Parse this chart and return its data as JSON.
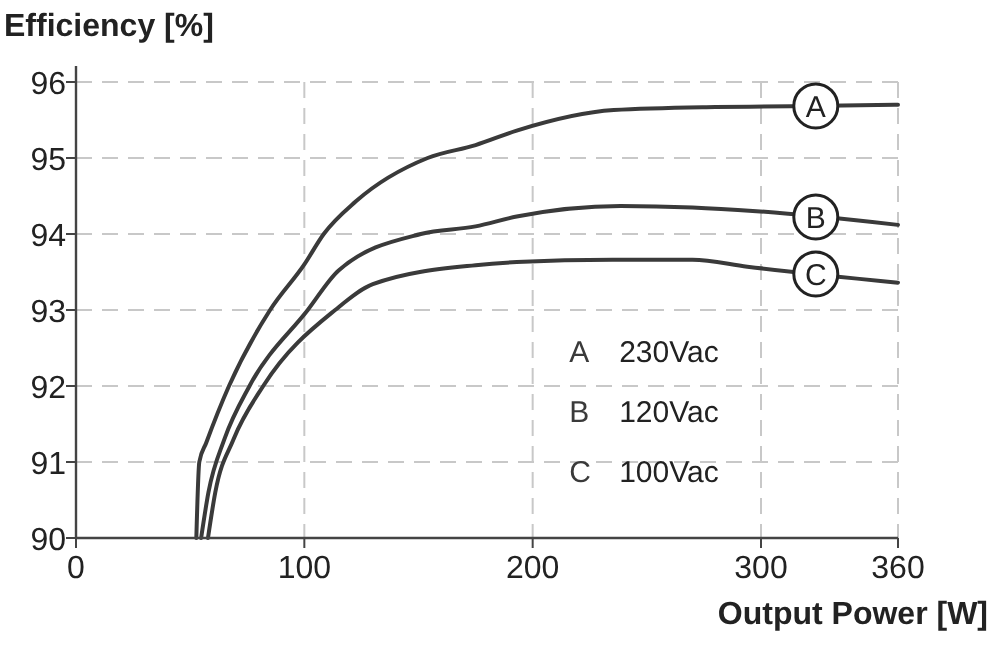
{
  "chart_data": {
    "type": "line",
    "ylabel": "Efficiency [%]",
    "xlabel": "Output Power [W]",
    "xlim": [
      0,
      360
    ],
    "xticks": [
      0,
      100,
      200,
      300,
      360
    ],
    "ylim": [
      90,
      96
    ],
    "yticks": [
      90,
      91,
      92,
      93,
      94,
      95,
      96
    ],
    "grid": true,
    "legend": "top right",
    "line_style": "solid",
    "series": [
      {
        "name": "A",
        "color": "#3a3a3a",
        "x": [
          52.7,
          54,
          57,
          67,
          85,
          100,
          108.5,
          122.6,
          154,
          175,
          193,
          235.5,
          280,
          313,
          360
        ],
        "values": [
          90,
          91,
          91.25,
          92,
          93,
          93.6,
          94,
          94.43,
          95,
          95.17,
          95.36,
          95.63,
          95.67,
          95.68,
          95.7
        ]
      },
      {
        "name": "B",
        "color": "#3a3a3a",
        "x": [
          54.8,
          58,
          65,
          76,
          101.5,
          115,
          151,
          175,
          193,
          238.5,
          270,
          298,
          325,
          360
        ],
        "values": [
          90,
          90.6,
          91.3,
          92,
          93,
          93.52,
          94,
          94.1,
          94.23,
          94.37,
          94.35,
          94.3,
          null,
          94.12
        ]
      },
      {
        "name": "C",
        "color": "#3a3a3a",
        "x": [
          57.8,
          61,
          69,
          82,
          113.5,
          130,
          175,
          193,
          235,
          270,
          294,
          322,
          360
        ],
        "values": [
          90,
          90.6,
          91.3,
          92,
          93,
          93.34,
          93.59,
          93.63,
          93.66,
          93.66,
          93.57,
          null,
          93.36
        ]
      }
    ],
    "annotations": [
      "230Vac",
      "120Vac",
      "100Vac"
    ]
  }
}
